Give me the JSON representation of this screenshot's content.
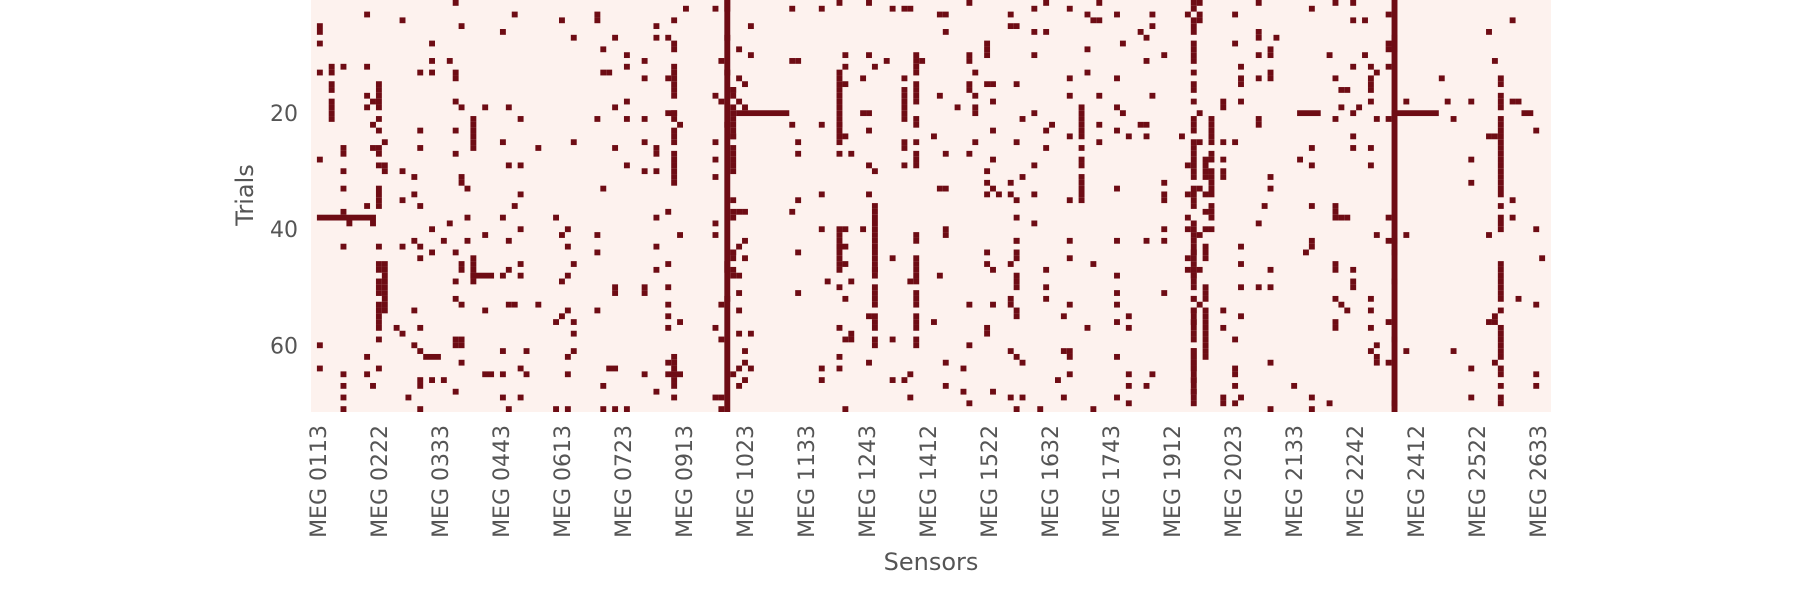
{
  "chart_data": {
    "type": "heatmap",
    "title": "",
    "xlabel": "Sensors",
    "ylabel": "Trials",
    "n_trials": 71,
    "sensor_tick_labels": [
      "MEG 0113",
      "MEG 0222",
      "MEG 0333",
      "MEG 0443",
      "MEG 0613",
      "MEG 0723",
      "MEG 0913",
      "MEG 1023",
      "MEG 1133",
      "MEG 1243",
      "MEG 1412",
      "MEG 1522",
      "MEG 1632",
      "MEG 1743",
      "MEG 1912",
      "MEG 2023",
      "MEG 2133",
      "MEG 2242",
      "MEG 2412",
      "MEG 2522",
      "MEG 2633"
    ],
    "trial_ticks": [
      20,
      40,
      60
    ],
    "colors": {
      "bad": "#6e0c14",
      "good": "#fdf2ee"
    },
    "legend": "none",
    "grid": false,
    "bad_full_columns": [
      "MEG 1023",
      "MEG 2443"
    ],
    "bad_full_rows": [],
    "bad_column_segments": [
      {
        "sensor": "MEG 0143",
        "trials": [
          12,
          21
        ]
      },
      {
        "sensor": "MEG 0232",
        "trials": [
          15,
          36
        ]
      },
      {
        "sensor": "MEG 0232",
        "trials": [
          46,
          57
        ]
      },
      {
        "sensor": "MEG 0242",
        "trials": [
          46,
          56
        ]
      },
      {
        "sensor": "MEG 0243",
        "trials": [
          25,
          30
        ]
      },
      {
        "sensor": "MEG 0412",
        "trials": [
          20,
          26
        ]
      },
      {
        "sensor": "MEG 0413",
        "trials": [
          44,
          50
        ]
      },
      {
        "sensor": "MEG 0921",
        "trials": [
          8,
          32
        ]
      },
      {
        "sensor": "MEG 0921",
        "trials": [
          62,
          70
        ]
      },
      {
        "sensor": "MEG 1032",
        "trials": [
          16,
          30
        ]
      },
      {
        "sensor": "MEG 1032",
        "trials": [
          44,
          50
        ]
      },
      {
        "sensor": "MEG 1233",
        "trials": [
          14,
          26
        ]
      },
      {
        "sensor": "MEG 1233",
        "trials": [
          40,
          50
        ]
      },
      {
        "sensor": "MEG 1322",
        "trials": [
          36,
          60
        ]
      },
      {
        "sensor": "MEG 1412",
        "trials": [
          14,
          26
        ]
      },
      {
        "sensor": "MEG 1433",
        "trials": [
          10,
          30
        ]
      },
      {
        "sensor": "MEG 1433",
        "trials": [
          40,
          62
        ]
      },
      {
        "sensor": "MEG 1622",
        "trials": [
          42,
          56
        ]
      },
      {
        "sensor": "MEG 1742",
        "trials": [
          18,
          36
        ]
      },
      {
        "sensor": "MEG 2013",
        "trials": [
          1,
          71
        ]
      },
      {
        "sensor": "MEG 2013",
        "trials": [
          44,
          70
        ]
      },
      {
        "sensor": "MEG 2032",
        "trials": [
          28,
          62
        ]
      },
      {
        "sensor": "MEG 2043",
        "trials": [
          20,
          40
        ]
      },
      {
        "sensor": "MEG 2643",
        "trials": [
          14,
          40
        ]
      },
      {
        "sensor": "MEG 2643",
        "trials": [
          46,
          70
        ]
      }
    ],
    "bad_row_segments": [
      {
        "trial": 20,
        "sensors": [
          "MEG 2442",
          "MEG 2522"
        ]
      },
      {
        "trial": 20,
        "sensors": [
          "MEG 0913",
          "MEG 0921"
        ]
      },
      {
        "trial": 20,
        "sensors": [
          "MEG 1042",
          "MEG 1131"
        ]
      },
      {
        "trial": 20,
        "sensors": [
          "MEG 2211",
          "MEG 2241"
        ]
      },
      {
        "trial": 20,
        "sensors": [
          "MEG 2711",
          "MEG 2731"
        ]
      },
      {
        "trial": 38,
        "sensors": [
          "MEG 0122",
          "MEG 0222"
        ]
      },
      {
        "trial": 48,
        "sensors": [
          "MEG 0412",
          "MEG 0443"
        ]
      },
      {
        "trial": 65,
        "sensors": [
          "MEG 0911",
          "MEG 0933"
        ]
      },
      {
        "trial": 65,
        "sensors": [
          "MEG 0433",
          "MEG 0443"
        ]
      },
      {
        "trial": 64,
        "sensors": [
          "MEG 0722",
          "MEG 0733"
        ]
      },
      {
        "trial": 62,
        "sensors": [
          "MEG 0322",
          "MEG 0342"
        ]
      }
    ],
    "scattered_bad_density": 0.035
  }
}
